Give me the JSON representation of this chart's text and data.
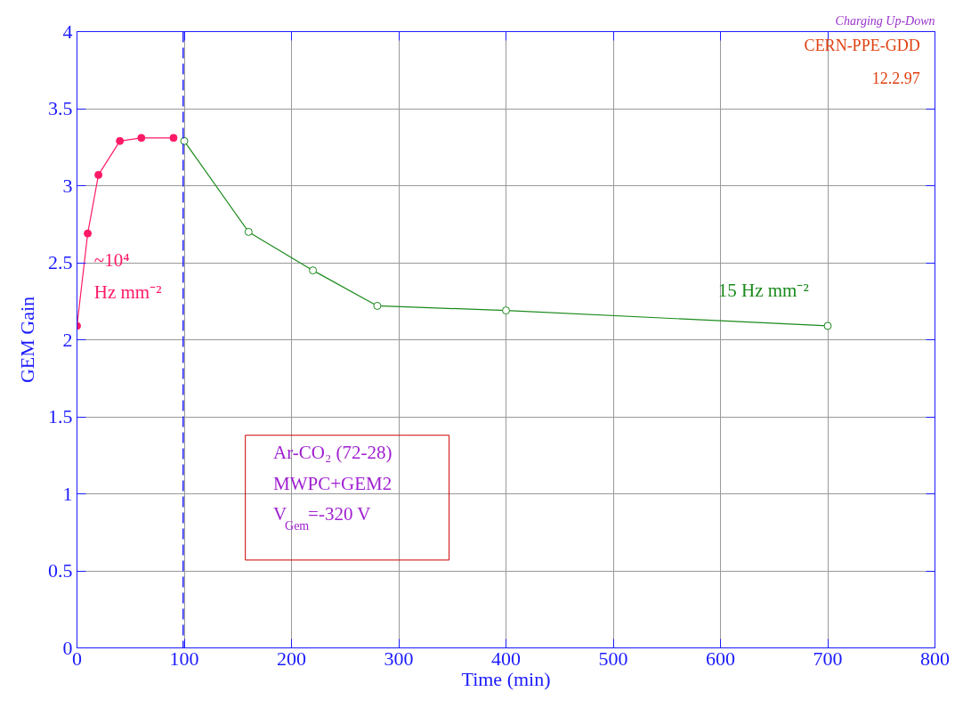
{
  "chart_data": {
    "type": "line",
    "title": "Charging Up-Down",
    "xlabel": "Time (min)",
    "ylabel": "GEM Gain",
    "xlim": [
      0,
      800
    ],
    "xticks": [
      0,
      100,
      200,
      300,
      400,
      500,
      600,
      700,
      800
    ],
    "ylim": [
      0,
      4
    ],
    "yticks": [
      0,
      0.5,
      1,
      1.5,
      2,
      2.5,
      3,
      3.5,
      4
    ],
    "grid": true,
    "marker": "circle",
    "line_style": "solid",
    "series": [
      {
        "name": "~10⁴ Hz mm⁻²",
        "color": "#ff1a66",
        "x": [
          0,
          10,
          20,
          40,
          60,
          90
        ],
        "values": [
          2.09,
          2.69,
          3.07,
          3.29,
          3.31,
          3.31
        ]
      },
      {
        "name": "15 Hz mm⁻²",
        "color": "#1a8a1a",
        "x": [
          100,
          160,
          220,
          280,
          400,
          700
        ],
        "values": [
          3.29,
          2.7,
          2.45,
          2.22,
          2.19,
          2.09
        ]
      }
    ],
    "ref_lines": [
      {
        "axis": "x",
        "value": 99,
        "color": "#1a1aff",
        "line_style": "dashed"
      }
    ],
    "annotations": [
      "CERN-PPE-GDD",
      "12.2.97",
      "Ar-CO₂ (72-28)",
      "MWPC+GEM2",
      "V$_{Gem}$=-320 V"
    ]
  }
}
